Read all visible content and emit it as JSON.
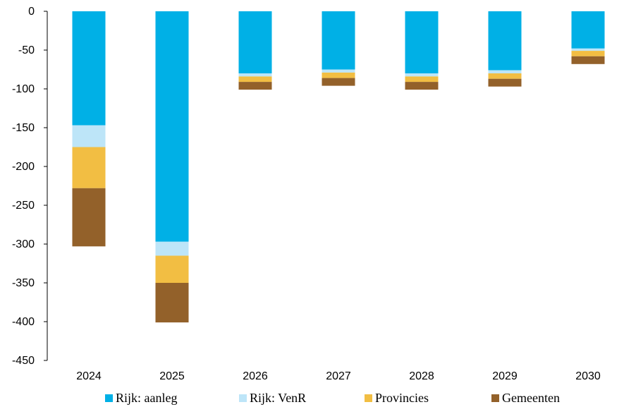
{
  "chart_data": {
    "type": "bar",
    "stacked": true,
    "categories": [
      "2024",
      "2025",
      "2026",
      "2027",
      "2028",
      "2029",
      "2030"
    ],
    "series": [
      {
        "name": "Rijk: aanleg",
        "color": "#00b0e6",
        "values": [
          -147,
          -297,
          -80,
          -75,
          -80,
          -76,
          -48
        ]
      },
      {
        "name": "Rijk: VenR",
        "color": "#bde5f8",
        "values": [
          -28,
          -18,
          -4,
          -4,
          -4,
          -4,
          -3
        ]
      },
      {
        "name": "Provincies",
        "color": "#f2be43",
        "values": [
          -53,
          -35,
          -7,
          -7,
          -7,
          -7,
          -7
        ]
      },
      {
        "name": "Gemeenten",
        "color": "#93612a",
        "values": [
          -75,
          -51,
          -10,
          -10,
          -10,
          -10,
          -10
        ]
      }
    ],
    "yticks": [
      "0",
      "-50",
      "-100",
      "-150",
      "-200",
      "-250",
      "-300",
      "-350",
      "-400",
      "-450"
    ],
    "ylim": [
      -450,
      0
    ],
    "title": "",
    "xlabel": "",
    "ylabel": "",
    "grid": false,
    "legend_position": "bottom"
  }
}
